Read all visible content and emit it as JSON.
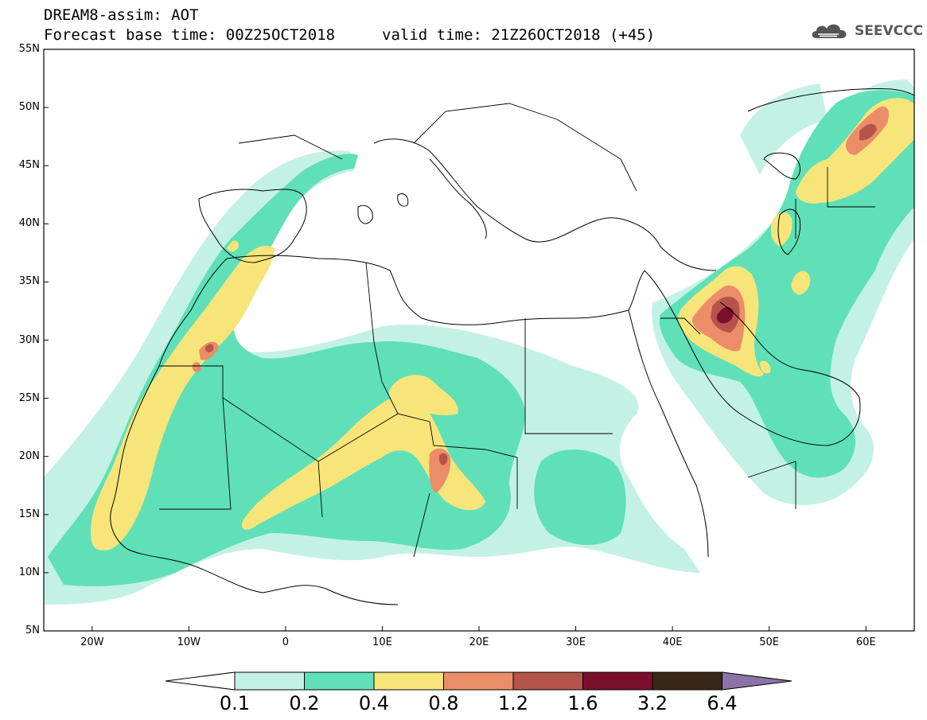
{
  "header": {
    "line1": "DREAM8-assim: AOT",
    "line2": "Forecast base time: 00Z25OCT2018",
    "valid": "valid time: 21Z26OCT2018 (+45)"
  },
  "logo": {
    "text": "SEEVCCC",
    "icon": "cloud-logo-icon"
  },
  "map": {
    "variable": "AOT",
    "lat_range": [
      5,
      55
    ],
    "lon_range": [
      -25,
      65
    ],
    "lat_ticks": [
      "55N",
      "50N",
      "45N",
      "40N",
      "35N",
      "30N",
      "25N",
      "20N",
      "15N",
      "10N",
      "5N"
    ],
    "lon_ticks": [
      "20W",
      "10W",
      "0",
      "10E",
      "20E",
      "30E",
      "40E",
      "50E",
      "60E"
    ]
  },
  "colorbar": {
    "labels": [
      "0.1",
      "0.2",
      "0.4",
      "0.8",
      "1.2",
      "1.6",
      "3.2",
      "6.4"
    ],
    "colors": [
      "#ffffff",
      "#c4f1e6",
      "#5fe0b8",
      "#f8e57a",
      "#eb8d68",
      "#b5544a",
      "#7a0f2c",
      "#3a2616",
      "#8b73a8"
    ]
  }
}
